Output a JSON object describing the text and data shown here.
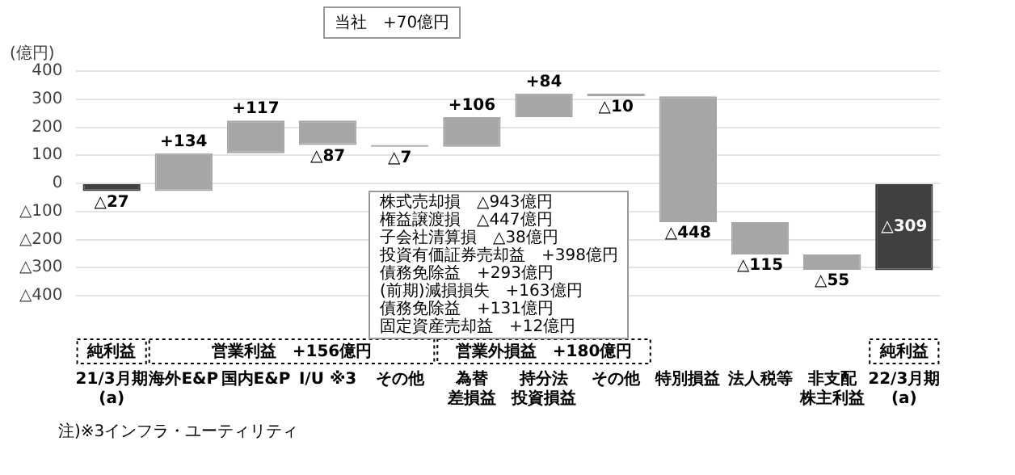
{
  "chart_data": {
    "type": "bar",
    "ylabel": "(億円)",
    "categories": [
      "21/3月期(a)",
      "海外E&P",
      "国内E&P",
      "I/U ※3",
      "その他",
      "為替差損益",
      "持分法投資損益",
      "その他",
      "特別損益",
      "法人税等",
      "非支配株主利益",
      "22/3月期(a)"
    ],
    "base": [
      0,
      -27,
      107,
      224,
      137,
      130,
      236,
      320,
      310,
      -138,
      -253,
      0
    ],
    "values": [
      -27,
      134,
      117,
      -87,
      -7,
      106,
      84,
      -10,
      -448,
      -115,
      -55,
      -309
    ],
    "colors": [
      "#404040",
      "#a6a6a6",
      "#a6a6a6",
      "#a6a6a6",
      "#a6a6a6",
      "#a6a6a6",
      "#a6a6a6",
      "#a6a6a6",
      "#a6a6a6",
      "#a6a6a6",
      "#a6a6a6",
      "#404040"
    ],
    "value_labels": [
      "△27",
      "+134",
      "+117",
      "△87",
      "△7",
      "+106",
      "+84",
      "△10",
      "△448",
      "△115",
      "△55",
      "△309"
    ],
    "ylim": [
      -400,
      400
    ],
    "yticks": [
      400,
      300,
      200,
      100,
      0,
      {
        "value": -100,
        "label": "△100"
      },
      {
        "value": -200,
        "label": "△200"
      },
      {
        "value": -300,
        "label": "△300"
      },
      {
        "value": -400,
        "label": "△400"
      }
    ],
    "grid": "y",
    "annotations": [
      "純利益",
      "営業利益　+156億円",
      "営業外損益　+180億円",
      "純利益",
      "当社　+70億円",
      "株式売却損　△943億円",
      "権益譲渡損　△447億円",
      "子会社清算損　△38億円",
      "投資有価証券売却益　+398億円",
      "債務免除益　+293億円",
      "(前期)減損損失　+163億円",
      "債務免除益　+131億円",
      "固定資産売却益　+12億円",
      "注)※3インフラ・ユーティリティ"
    ]
  }
}
